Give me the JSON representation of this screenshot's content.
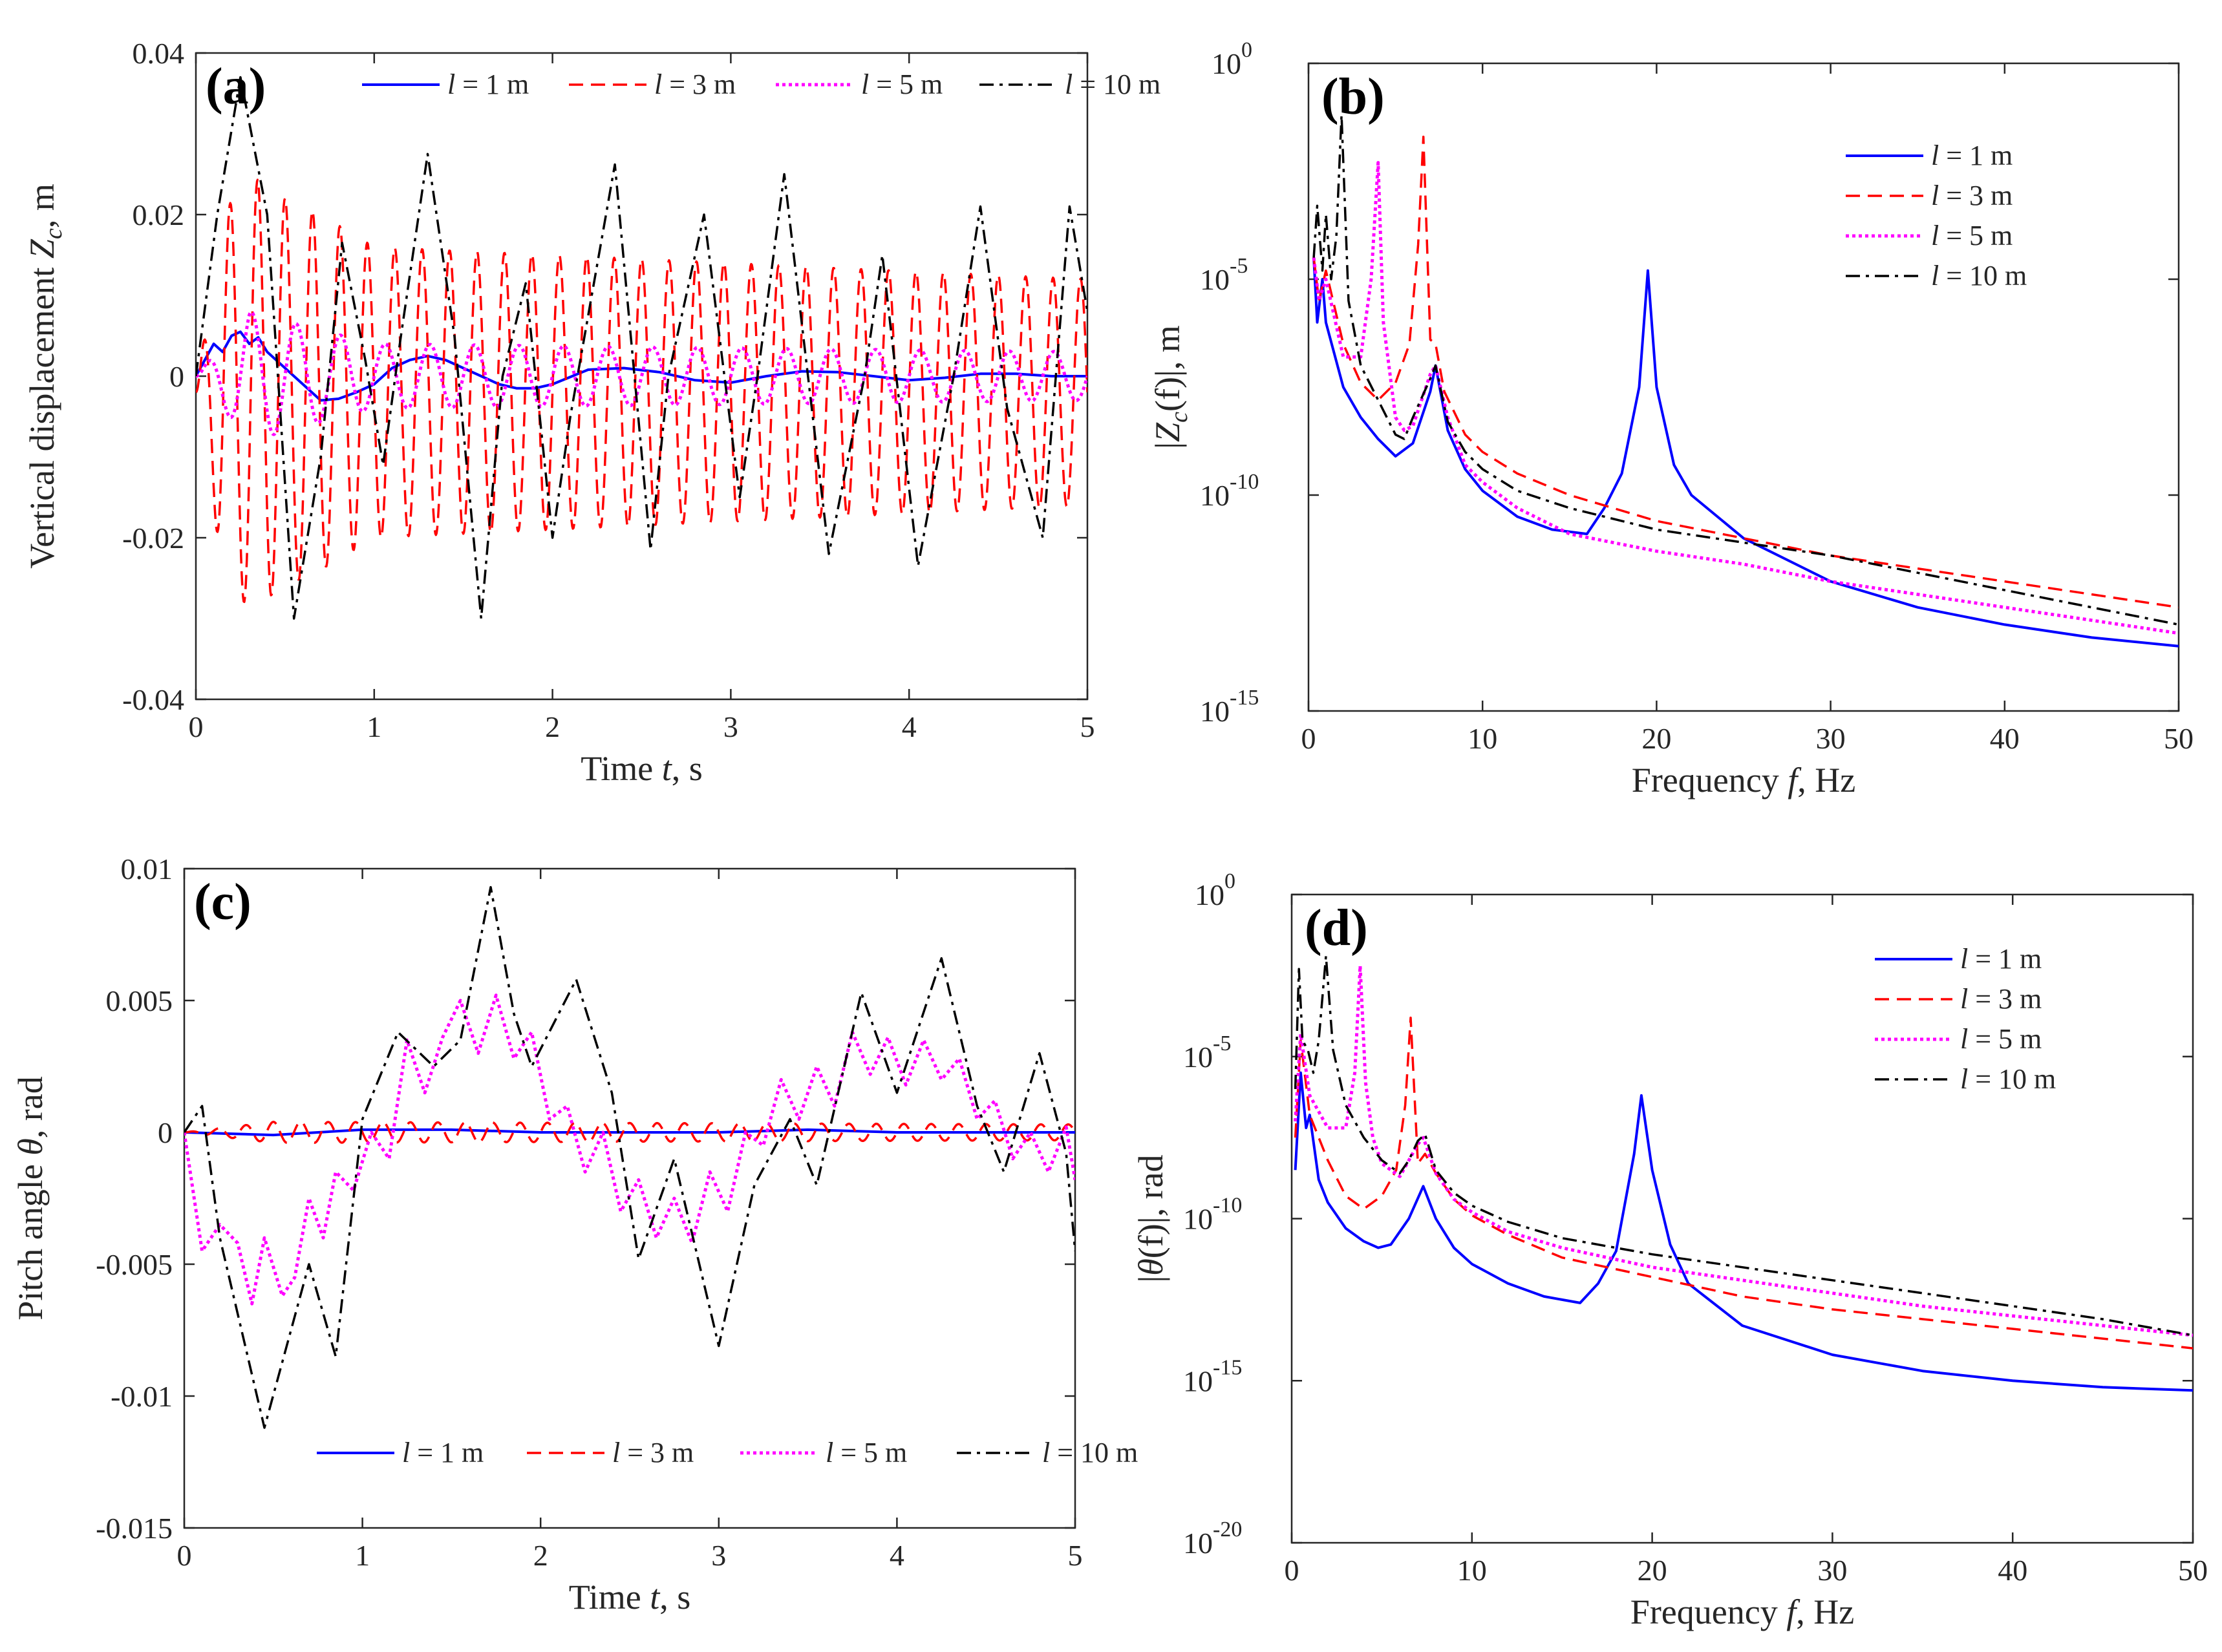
{
  "series_styles": [
    {
      "name": "l = 1 m",
      "color": "#0000ff",
      "dash": "",
      "width": 4
    },
    {
      "name": "l = 3 m",
      "color": "#ff0000",
      "dash": "22,12",
      "width": 3.5
    },
    {
      "name": "l = 5 m",
      "color": "#ff00ff",
      "dash": "5,5",
      "width": 5
    },
    {
      "name": "l = 10 m",
      "color": "#000000",
      "dash": "22,9,5,9",
      "width": 3.5
    }
  ],
  "legend_prefix": "l",
  "legend_values": [
    " = 1 m",
    " = 3 m",
    " = 5 m",
    " = 10 m"
  ],
  "chart_data": [
    {
      "id": "a",
      "panel_label": "(a)",
      "type": "line",
      "xlabel_pre": "Time ",
      "xlabel_var": "t",
      "xlabel_post": ", s",
      "ylabel_pre": "Vertical displacement ",
      "ylabel_var": "Z",
      "ylabel_sub": "c",
      "ylabel_post": ", m",
      "xlim": [
        0,
        5
      ],
      "ylim": [
        -0.04,
        0.04
      ],
      "yscale": "linear",
      "xticks": [
        "0",
        "1",
        "2",
        "3",
        "4",
        "5"
      ],
      "yticks": [
        "-0.04",
        "-0.02",
        "0",
        "0.02",
        "0.04"
      ],
      "legend": "top-horizontal",
      "series": [
        {
          "name": "l = 1 m",
          "x": [
            0,
            0.05,
            0.1,
            0.15,
            0.2,
            0.25,
            0.3,
            0.35,
            0.4,
            0.5,
            0.6,
            0.7,
            0.8,
            0.9,
            1.0,
            1.1,
            1.2,
            1.3,
            1.4,
            1.5,
            1.6,
            1.7,
            1.8,
            1.9,
            2.0,
            2.2,
            2.4,
            2.6,
            2.8,
            3.0,
            3.2,
            3.4,
            3.6,
            3.8,
            4.0,
            4.2,
            4.4,
            4.6,
            4.8,
            5.0
          ],
          "y": [
            0,
            0.002,
            0.004,
            0.003,
            0.005,
            0.0055,
            0.004,
            0.0048,
            0.003,
            0.001,
            -0.001,
            -0.003,
            -0.0028,
            -0.002,
            -0.001,
            0.001,
            0.002,
            0.0025,
            0.002,
            0.001,
            0,
            -0.001,
            -0.0015,
            -0.0015,
            -0.001,
            0.0008,
            0.001,
            0.0005,
            -0.0005,
            -0.0008,
            0,
            0.0006,
            0.0005,
            0,
            -0.0005,
            -0.0002,
            0.0003,
            0.0003,
            0,
            0
          ]
        },
        {
          "name": "l = 3 m",
          "amp_env": [
            [
              0,
              0.0
            ],
            [
              0.15,
              0.022
            ],
            [
              0.3,
              0.027
            ],
            [
              0.5,
              0.024
            ],
            [
              0.7,
              0.022
            ],
            [
              1.0,
              0.018
            ],
            [
              5.0,
              0.014
            ]
          ],
          "freq": 6.5,
          "offset": -0.002,
          "note": "oscillation approx +/-0.015 m at about 6.5 Hz"
        },
        {
          "name": "l = 5 m",
          "amp_env": [
            [
              0,
              0.0
            ],
            [
              0.3,
              0.008
            ],
            [
              1.0,
              0.004
            ],
            [
              5.0,
              0.003
            ]
          ],
          "freq": 4.0,
          "offset": 0.0,
          "note": "small oscillation approx +/-0.004 m at about 4 Hz"
        },
        {
          "name": "l = 10 m",
          "x": [
            0,
            0.12,
            0.25,
            0.4,
            0.55,
            0.7,
            0.82,
            0.95,
            1.05,
            1.15,
            1.3,
            1.45,
            1.6,
            1.72,
            1.85,
            2.0,
            2.1,
            2.35,
            2.55,
            2.65,
            2.85,
            3.05,
            3.15,
            3.3,
            3.55,
            3.75,
            3.85,
            4.05,
            4.25,
            4.4,
            4.55,
            4.75,
            4.9,
            5.0
          ],
          "y": [
            0,
            0.02,
            0.037,
            0.02,
            -0.03,
            -0.01,
            0.0165,
            0.002,
            -0.011,
            0.005,
            0.0275,
            0.005,
            -0.03,
            0.0,
            0.0115,
            -0.02,
            -0.005,
            0.0262,
            -0.0215,
            0.0,
            0.02,
            -0.015,
            0.0,
            0.025,
            -0.022,
            0.0,
            0.015,
            -0.0235,
            0.0,
            0.021,
            -0.004,
            -0.02,
            0.021,
            0.008
          ]
        }
      ]
    },
    {
      "id": "b",
      "panel_label": "(b)",
      "type": "line",
      "xlabel_pre": "Frequency ",
      "xlabel_var": "f",
      "xlabel_post": ", Hz",
      "ylabel_pre": "|",
      "ylabel_var": "Z",
      "ylabel_sub": "c",
      "ylabel_post": "(f)|, m",
      "xlim": [
        0,
        50
      ],
      "ylim_exp": [
        -15,
        0
      ],
      "yscale": "log",
      "xticks": [
        "0",
        "10",
        "20",
        "30",
        "40",
        "50"
      ],
      "yticks_exp": [
        "-15",
        "-10",
        "-5",
        "0"
      ],
      "legend": "top-right",
      "series": [
        {
          "name": "l = 1 m",
          "x": [
            0.3,
            0.5,
            0.8,
            1,
            2,
            3,
            4,
            5,
            6,
            7,
            7.3,
            8,
            9,
            10,
            12,
            14,
            16,
            17,
            18,
            19,
            19.5,
            20,
            21,
            22,
            25,
            30,
            35,
            40,
            45,
            50
          ],
          "logy": [
            -4.5,
            -6,
            -5,
            -6,
            -7.5,
            -8.2,
            -8.7,
            -9.1,
            -8.8,
            -7.6,
            -7.0,
            -8.5,
            -9.4,
            -9.9,
            -10.5,
            -10.8,
            -10.9,
            -10.3,
            -9.5,
            -7.5,
            -4.8,
            -7.5,
            -9.3,
            -10,
            -11,
            -12,
            -12.6,
            -13,
            -13.3,
            -13.5
          ]
        },
        {
          "name": "l = 3 m",
          "x": [
            0.3,
            0.6,
            1,
            2,
            3,
            4,
            5,
            5.8,
            6.3,
            6.6,
            7,
            7.3,
            7.8,
            9,
            10,
            12,
            15,
            20,
            25,
            30,
            35,
            40,
            45,
            50
          ],
          "logy": [
            -4.5,
            -5.5,
            -4.8,
            -6.5,
            -7.4,
            -7.8,
            -7.4,
            -6.5,
            -4.2,
            -1.7,
            -6.4,
            -6.5,
            -7.6,
            -8.6,
            -9,
            -9.5,
            -10,
            -10.6,
            -11,
            -11.4,
            -11.7,
            -12,
            -12.3,
            -12.6
          ]
        },
        {
          "name": "l = 5 m",
          "x": [
            0.3,
            0.6,
            1,
            2,
            3,
            3.6,
            4,
            4.3,
            5,
            5.5,
            6,
            7,
            7.3,
            8,
            9,
            10,
            12,
            15,
            20,
            25,
            30,
            35,
            40,
            45,
            50
          ],
          "logy": [
            -4.5,
            -5.5,
            -5,
            -6.8,
            -6.8,
            -5,
            -2.3,
            -6,
            -8.2,
            -8.5,
            -8.4,
            -7.2,
            -7.0,
            -8.2,
            -9.3,
            -9.7,
            -10.3,
            -10.9,
            -11.3,
            -11.6,
            -12,
            -12.3,
            -12.6,
            -12.9,
            -13.2
          ]
        },
        {
          "name": "l = 10 m",
          "x": [
            0.3,
            0.5,
            0.8,
            1,
            1.3,
            1.6,
            1.9,
            2.3,
            3,
            4,
            5,
            5.5,
            6,
            7,
            7.3,
            8,
            9,
            10,
            12,
            15,
            20,
            25,
            30,
            35,
            40,
            45,
            50
          ],
          "logy": [
            -4.5,
            -3.3,
            -4.8,
            -3.5,
            -5,
            -4,
            -1.2,
            -5.5,
            -7,
            -7.8,
            -8.6,
            -8.7,
            -8.2,
            -7.3,
            -7.0,
            -8.3,
            -9,
            -9.4,
            -9.9,
            -10.3,
            -10.8,
            -11.1,
            -11.4,
            -11.8,
            -12.2,
            -12.6,
            -13
          ]
        }
      ]
    },
    {
      "id": "c",
      "panel_label": "(c)",
      "type": "line",
      "xlabel_pre": "Time ",
      "xlabel_var": "t",
      "xlabel_post": ", s",
      "ylabel_pre": "Pitch angle ",
      "ylabel_var": "θ",
      "ylabel_sub": "",
      "ylabel_post": ", rad",
      "xlim": [
        0,
        5
      ],
      "ylim": [
        -0.015,
        0.01
      ],
      "yscale": "linear",
      "xticks": [
        "0",
        "1",
        "2",
        "3",
        "4",
        "5"
      ],
      "yticks": [
        "-0.015",
        "-0.01",
        "-0.005",
        "0",
        "0.005",
        "0.01"
      ],
      "legend": "bottom-horizontal",
      "series": [
        {
          "name": "l = 1 m",
          "x": [
            0,
            0.5,
            1,
            1.5,
            2,
            2.5,
            3,
            3.5,
            4,
            4.5,
            5
          ],
          "y": [
            0,
            -0.0001,
            0.0001,
            0.0001,
            0,
            0,
            0,
            0.0001,
            0,
            0,
            0
          ]
        },
        {
          "name": "l = 3 m",
          "amp_env": [
            [
              0,
              0.0
            ],
            [
              0.5,
              0.0004
            ],
            [
              5.0,
              0.0003
            ]
          ],
          "freq": 6.5,
          "offset": 0.0,
          "note": "tiny oscillation approx +/-0.0004 rad"
        },
        {
          "name": "l = 5 m",
          "x": [
            0,
            0.1,
            0.2,
            0.3,
            0.38,
            0.45,
            0.55,
            0.62,
            0.7,
            0.78,
            0.85,
            0.95,
            1.05,
            1.15,
            1.25,
            1.35,
            1.45,
            1.55,
            1.65,
            1.75,
            1.85,
            1.95,
            2.05,
            2.15,
            2.25,
            2.35,
            2.45,
            2.55,
            2.65,
            2.75,
            2.85,
            2.95,
            3.05,
            3.15,
            3.25,
            3.35,
            3.45,
            3.55,
            3.65,
            3.75,
            3.85,
            3.95,
            4.05,
            4.15,
            4.25,
            4.35,
            4.45,
            4.55,
            4.65,
            4.75,
            4.85,
            4.95,
            5.0
          ],
          "y": [
            0,
            -0.0045,
            -0.0035,
            -0.0042,
            -0.0065,
            -0.004,
            -0.0062,
            -0.0055,
            -0.0025,
            -0.004,
            -0.0015,
            -0.0022,
            0.0,
            -0.001,
            0.0035,
            0.0015,
            0.0036,
            0.005,
            0.003,
            0.0052,
            0.0028,
            0.0038,
            0.0005,
            0.001,
            -0.0015,
            0.0,
            -0.003,
            -0.0018,
            -0.004,
            -0.0025,
            -0.0042,
            -0.0015,
            -0.003,
            0.0,
            -0.0005,
            0.002,
            0.0005,
            0.0025,
            0.001,
            0.0038,
            0.0022,
            0.0036,
            0.0018,
            0.0035,
            0.002,
            0.0028,
            0.0005,
            0.0012,
            -0.001,
            0.0,
            -0.0015,
            0.0002,
            -0.0018
          ]
        },
        {
          "name": "l = 10 m",
          "x": [
            0,
            0.1,
            0.2,
            0.45,
            0.7,
            0.85,
            1.0,
            1.2,
            1.4,
            1.55,
            1.72,
            1.85,
            1.95,
            2.2,
            2.4,
            2.55,
            2.75,
            3.0,
            3.2,
            3.4,
            3.55,
            3.8,
            4.0,
            4.25,
            4.45,
            4.6,
            4.8,
            4.95,
            5.0
          ],
          "y": [
            0,
            0.001,
            -0.004,
            -0.0112,
            -0.005,
            -0.0085,
            0.0005,
            0.0038,
            0.0025,
            0.0035,
            0.0093,
            0.0045,
            0.0025,
            0.0058,
            0.0015,
            -0.0048,
            -0.001,
            -0.0081,
            -0.002,
            0.0005,
            -0.002,
            0.0053,
            0.0015,
            0.0066,
            0.001,
            -0.0015,
            0.003,
            -0.0008,
            -0.0045
          ]
        }
      ]
    },
    {
      "id": "d",
      "panel_label": "(d)",
      "type": "line",
      "xlabel_pre": "Frequency ",
      "xlabel_var": "f",
      "xlabel_post": ", Hz",
      "ylabel_pre": "|",
      "ylabel_var": "θ",
      "ylabel_sub": "",
      "ylabel_post": "(f)|, rad",
      "xlim": [
        0,
        50
      ],
      "ylim_exp": [
        -20,
        0
      ],
      "yscale": "log",
      "xticks": [
        "0",
        "10",
        "20",
        "30",
        "40",
        "50"
      ],
      "yticks_exp": [
        "-20",
        "-15",
        "-10",
        "-5",
        "0"
      ],
      "legend": "top-right",
      "series": [
        {
          "name": "l = 1 m",
          "x": [
            0.2,
            0.5,
            0.8,
            1,
            1.5,
            2,
            3,
            4,
            4.8,
            5.5,
            6.5,
            7.3,
            8,
            9,
            10,
            12,
            14,
            16,
            17,
            18,
            19,
            19.4,
            20,
            21,
            22,
            25,
            30,
            35,
            40,
            45,
            50
          ],
          "logy": [
            -8.5,
            -5.5,
            -7.2,
            -6.8,
            -8.8,
            -9.5,
            -10.3,
            -10.7,
            -10.9,
            -10.8,
            -10,
            -9,
            -10,
            -10.9,
            -11.4,
            -12,
            -12.4,
            -12.6,
            -12,
            -11,
            -8,
            -6.2,
            -8.5,
            -10.8,
            -12,
            -13.3,
            -14.2,
            -14.7,
            -15,
            -15.2,
            -15.3
          ]
        },
        {
          "name": "l = 3 m",
          "x": [
            0.2,
            0.5,
            1,
            2,
            3,
            4,
            5,
            5.8,
            6.3,
            6.6,
            7,
            7.4,
            8,
            9,
            10,
            12,
            15,
            20,
            25,
            30,
            35,
            40,
            45,
            50
          ],
          "logy": [
            -7.5,
            -4.5,
            -6.8,
            -8.2,
            -9.3,
            -9.7,
            -9.3,
            -8.5,
            -6.5,
            -3.8,
            -8.3,
            -8.0,
            -8.6,
            -9.4,
            -9.9,
            -10.5,
            -11.2,
            -11.8,
            -12.4,
            -12.8,
            -13.1,
            -13.4,
            -13.7,
            -14
          ]
        },
        {
          "name": "l = 5 m",
          "x": [
            0.2,
            0.5,
            1,
            2,
            3,
            3.5,
            3.8,
            4.1,
            4.5,
            5,
            6,
            7,
            7.3,
            8,
            9,
            10,
            12,
            15,
            20,
            25,
            30,
            35,
            40,
            45,
            50
          ],
          "logy": [
            -7,
            -4.3,
            -6.2,
            -7.2,
            -7.2,
            -5.5,
            -2.2,
            -5.8,
            -7.5,
            -8.3,
            -8.7,
            -7.7,
            -7.5,
            -8.6,
            -9.4,
            -9.8,
            -10.4,
            -10.9,
            -11.5,
            -11.9,
            -12.3,
            -12.7,
            -13.0,
            -13.3,
            -13.6
          ]
        },
        {
          "name": "l = 10 m",
          "x": [
            0.2,
            0.4,
            0.6,
            0.9,
            1.2,
            1.5,
            1.9,
            2.3,
            3,
            4,
            5,
            6,
            6.5,
            7,
            7.4,
            8,
            9,
            10,
            12,
            15,
            20,
            25,
            30,
            35,
            40,
            45,
            50
          ],
          "logy": [
            -6,
            -2.3,
            -4.5,
            -4.8,
            -5.5,
            -4.5,
            -1.9,
            -4.8,
            -6.5,
            -7.5,
            -8.2,
            -8.6,
            -8.2,
            -7.6,
            -7.4,
            -8.5,
            -9.2,
            -9.6,
            -10.1,
            -10.6,
            -11.1,
            -11.5,
            -11.9,
            -12.3,
            -12.7,
            -13.1,
            -13.6
          ]
        }
      ]
    }
  ]
}
